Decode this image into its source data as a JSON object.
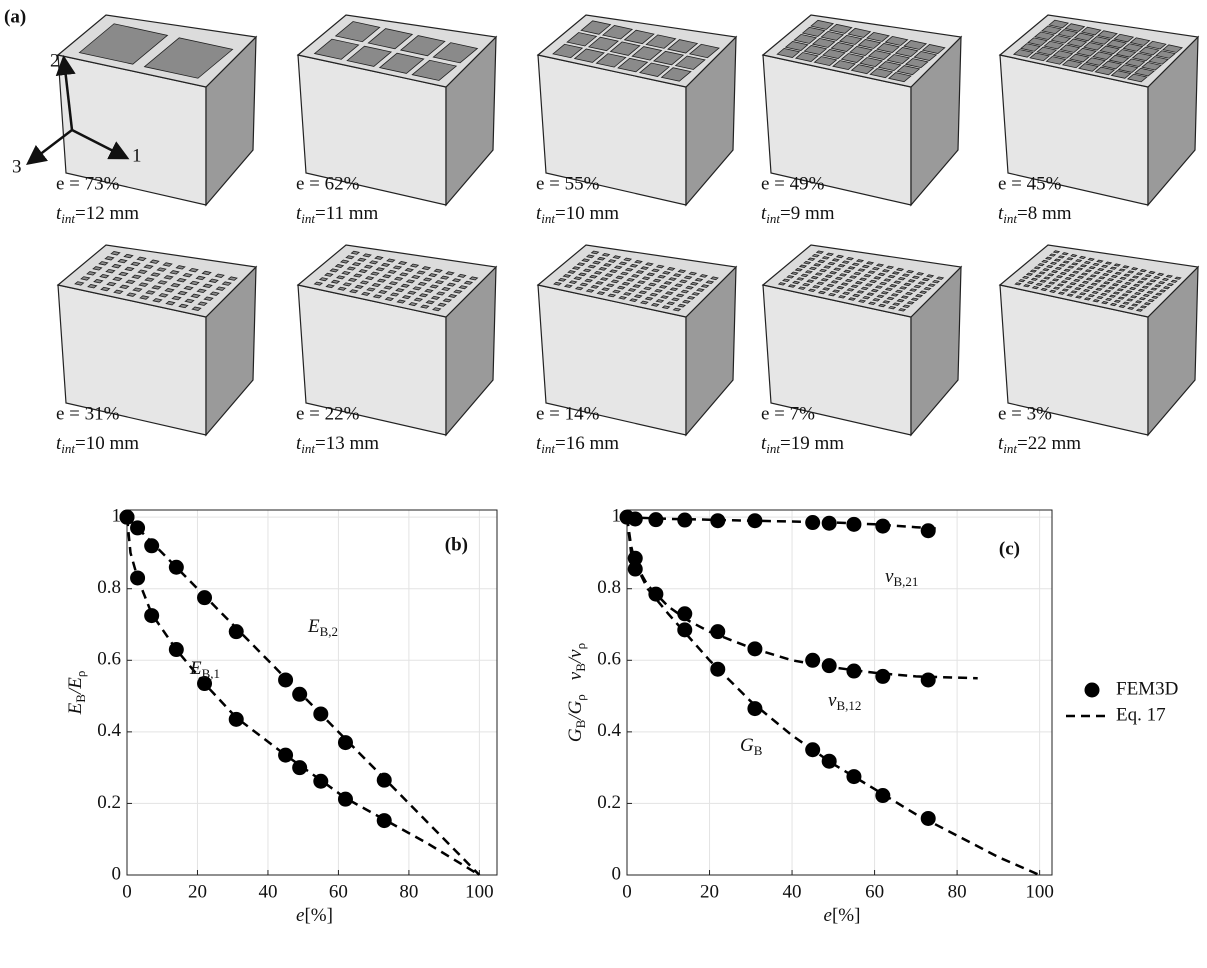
{
  "panel_a": {
    "label": "(a)",
    "axes": [
      "1",
      "2",
      "3"
    ],
    "blocks": [
      {
        "e": "e = 73%",
        "t": "t",
        "t_sub": "int",
        "t_rest": "=12 mm"
      },
      {
        "e": "e = 62%",
        "t": "t",
        "t_sub": "int",
        "t_rest": "=11 mm"
      },
      {
        "e": "e = 55%",
        "t": "t",
        "t_sub": "int",
        "t_rest": "=10 mm"
      },
      {
        "e": "e = 49%",
        "t": "t",
        "t_sub": "int",
        "t_rest": "=9 mm"
      },
      {
        "e": "e = 45%",
        "t": "t",
        "t_sub": "int",
        "t_rest": "=8 mm"
      },
      {
        "e": "e = 31%",
        "t": "t",
        "t_sub": "int",
        "t_rest": "=10 mm"
      },
      {
        "e": "e = 22%",
        "t": "t",
        "t_sub": "int",
        "t_rest": "=13 mm"
      },
      {
        "e": "e = 14%",
        "t": "t",
        "t_sub": "int",
        "t_rest": "=16 mm"
      },
      {
        "e": "e = 7%",
        "t": "t",
        "t_sub": "int",
        "t_rest": "=19 mm"
      },
      {
        "e": "e = 3%",
        "t": "t",
        "t_sub": "int",
        "t_rest": "=22 mm"
      }
    ]
  },
  "chart_data": [
    {
      "type": "scatter",
      "panel": "(b)",
      "xlabel_parts": [
        "e",
        "[%]"
      ],
      "ylabel_parts": [
        "E",
        "B",
        "/E",
        "ρ"
      ],
      "xlim": [
        0,
        105
      ],
      "ylim": [
        0,
        1.02
      ],
      "xticks": [
        0,
        20,
        40,
        60,
        80,
        100
      ],
      "yticks": [
        0,
        0.2,
        0.4,
        0.6,
        0.8,
        1
      ],
      "grid": true,
      "series": [
        {
          "label": "E",
          "label_sub": "B,2",
          "color": "#000000",
          "x": [
            0,
            3,
            7,
            14,
            22,
            31,
            45,
            49,
            55,
            62,
            73
          ],
          "values": [
            1,
            0.97,
            0.92,
            0.86,
            0.775,
            0.68,
            0.545,
            0.505,
            0.45,
            0.37,
            0.265
          ],
          "fit_x": [
            0,
            20,
            40,
            60,
            80,
            100
          ],
          "fit_values": [
            1,
            0.8,
            0.6,
            0.4,
            0.2,
            0
          ]
        },
        {
          "label": "E",
          "label_sub": "B,1",
          "color": "#000000",
          "x": [
            0,
            3,
            7,
            14,
            22,
            31,
            45,
            49,
            55,
            62,
            73
          ],
          "values": [
            1,
            0.83,
            0.725,
            0.63,
            0.535,
            0.435,
            0.335,
            0.3,
            0.262,
            0.212,
            0.152
          ],
          "fit_x": [
            0,
            1,
            3,
            7,
            14,
            22,
            31,
            45,
            55,
            62,
            73,
            85,
            100
          ],
          "fit_values": [
            1,
            0.9,
            0.83,
            0.73,
            0.63,
            0.535,
            0.44,
            0.335,
            0.265,
            0.215,
            0.155,
            0.09,
            0
          ]
        }
      ]
    },
    {
      "type": "scatter",
      "panel": "(c)",
      "xlabel_parts": [
        "e",
        "[%]"
      ],
      "ylabel_parts": [
        "G",
        "B",
        "/G",
        "ρ",
        "ν",
        "B",
        "/ν",
        "ρ"
      ],
      "xlim": [
        0,
        103
      ],
      "ylim": [
        0,
        1.02
      ],
      "xticks": [
        0,
        20,
        40,
        60,
        80,
        100
      ],
      "yticks": [
        0,
        0.2,
        0.4,
        0.6,
        0.8,
        1
      ],
      "grid": true,
      "legend": [
        "FEM3D",
        "Eq. 17"
      ],
      "series": [
        {
          "label": "ν",
          "label_sub": "B,21",
          "color": "#000000",
          "x": [
            0,
            2,
            7,
            14,
            22,
            31,
            45,
            49,
            55,
            62,
            73
          ],
          "values": [
            1,
            0.995,
            0.993,
            0.992,
            0.99,
            0.99,
            0.985,
            0.983,
            0.98,
            0.975,
            0.962
          ],
          "fit_x": [
            0,
            10,
            20,
            30,
            40,
            50,
            60,
            70,
            75
          ],
          "fit_values": [
            1,
            0.995,
            0.993,
            0.99,
            0.988,
            0.985,
            0.98,
            0.972,
            0.968
          ]
        },
        {
          "label": "ν",
          "label_sub": "B,12",
          "color": "#000000",
          "x": [
            2,
            7,
            14,
            22,
            31,
            45,
            49,
            55,
            62,
            73
          ],
          "values": [
            0.885,
            0.785,
            0.73,
            0.68,
            0.632,
            0.6,
            0.585,
            0.57,
            0.555,
            0.545
          ],
          "fit_x": [
            0,
            1,
            2,
            5,
            10,
            15,
            20,
            30,
            40,
            50,
            60,
            70,
            85
          ],
          "fit_values": [
            1,
            0.9,
            0.87,
            0.81,
            0.75,
            0.71,
            0.68,
            0.635,
            0.6,
            0.58,
            0.565,
            0.555,
            0.55
          ]
        },
        {
          "label": "G",
          "label_sub": "B",
          "color": "#000000",
          "x": [
            2,
            14,
            22,
            31,
            45,
            49,
            55,
            62,
            73
          ],
          "values": [
            0.855,
            0.685,
            0.575,
            0.465,
            0.35,
            0.318,
            0.275,
            0.222,
            0.158
          ],
          "fit_x": [
            0,
            1,
            2,
            5,
            10,
            20,
            30,
            40,
            50,
            60,
            70,
            80,
            90,
            100
          ],
          "fit_values": [
            1,
            0.92,
            0.87,
            0.8,
            0.73,
            0.6,
            0.485,
            0.39,
            0.31,
            0.24,
            0.17,
            0.11,
            0.05,
            0
          ]
        }
      ]
    }
  ]
}
